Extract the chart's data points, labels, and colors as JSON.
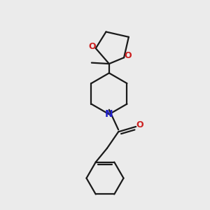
{
  "bg_color": "#ebebeb",
  "bond_color": "#1a1a1a",
  "N_color": "#2020cc",
  "O_color": "#cc2020",
  "line_width": 1.6,
  "figsize": [
    3.0,
    3.0
  ],
  "dpi": 100,
  "xlim": [
    0,
    10
  ],
  "ylim": [
    0,
    10
  ]
}
